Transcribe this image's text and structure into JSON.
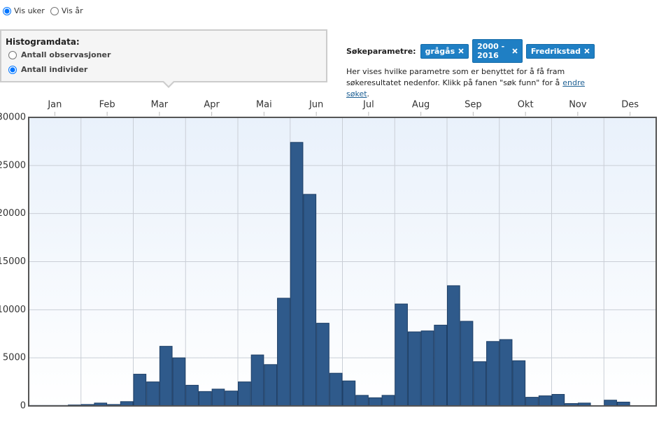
{
  "view_options": {
    "options": [
      "Vis uker",
      "Vis år"
    ],
    "selected": 0
  },
  "histogram_panel": {
    "title": "Histogramdata:",
    "options": [
      "Antall observasjoner",
      "Antall individer"
    ],
    "selected": 1
  },
  "search_params": {
    "label": "Søkeparametre:",
    "tags": [
      "grågås",
      "2000 - 2016",
      "Fredrikstad"
    ],
    "description": "Her vises hvilke parametre som er benyttet for å få fram søkeresultatet nedenfor. Klikk på fanen \"søk funn\" for å",
    "link": "endre søket",
    "description_end": "."
  },
  "chart_data": {
    "type": "bar",
    "x_labels": [
      "Jan",
      "Feb",
      "Mar",
      "Apr",
      "Mai",
      "Jun",
      "Jul",
      "Aug",
      "Sep",
      "Okt",
      "Nov",
      "Des"
    ],
    "values": [
      50,
      50,
      50,
      100,
      150,
      300,
      150,
      450,
      3300,
      2500,
      6200,
      5000,
      2150,
      1500,
      1750,
      1550,
      2500,
      5300,
      4300,
      11200,
      27400,
      22000,
      8600,
      3400,
      2600,
      1100,
      850,
      1100,
      10600,
      7700,
      7800,
      8400,
      12500,
      8800,
      4600,
      6700,
      6900,
      4700,
      900,
      1050,
      1200,
      250,
      300,
      0,
      600,
      400,
      0,
      0
    ],
    "color": "#2f5a8b",
    "ylim": [
      0,
      30000
    ],
    "yticks": [
      0,
      5000,
      10000,
      15000,
      20000,
      25000,
      30000
    ],
    "grid": true
  }
}
